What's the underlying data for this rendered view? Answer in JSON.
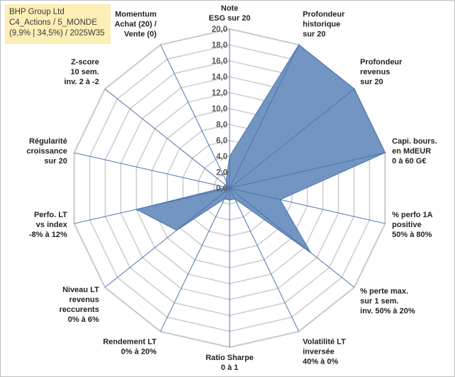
{
  "title_box": {
    "lines": [
      "BHP Group Ltd",
      "C4_Actions / 5_MONDE",
      "(9,9% | 34,5%) / 2025W35"
    ]
  },
  "chart_data": {
    "type": "radar",
    "rmin": 0,
    "rmax": 20,
    "tick_step": 2,
    "tick_labels": [
      "0,0",
      "2,0",
      "4,0",
      "6,0",
      "8,0",
      "10,0",
      "12,0",
      "14,0",
      "16,0",
      "18,0",
      "20,0"
    ],
    "grid": true,
    "legend": "none",
    "fill_color": "#6b8fbe",
    "line_color": "#4a73b0",
    "grid_color": "#c8c8c8",
    "axes": [
      {
        "label": [
          "Note",
          "ESG sur 20"
        ],
        "value": 4
      },
      {
        "label": [
          "Profondeur",
          "historique",
          "sur 20"
        ],
        "value": 20
      },
      {
        "label": [
          "Profondeur",
          "revenus",
          "sur 20"
        ],
        "value": 20
      },
      {
        "label": [
          "Capi. bours.",
          "en MdEUR",
          "0 à 60 G€"
        ],
        "value": 20
      },
      {
        "label": [
          "% perfo 1A",
          "positive",
          "50% à 80%"
        ],
        "value": 6.5
      },
      {
        "label": [
          "% perte max.",
          "sur 1 sem.",
          "inv. 50% à 20%"
        ],
        "value": 13
      },
      {
        "label": [
          "Volatilité LT",
          "inversée",
          "40% à 0%"
        ],
        "value": 1.5
      },
      {
        "label": [
          "Ratio Sharpe",
          "0 à 1"
        ],
        "value": 1.5
      },
      {
        "label": [
          "Rendement LT",
          "0% à 20%"
        ],
        "value": 1.5
      },
      {
        "label": [
          "Niveau LT",
          "revenus",
          "reccurents",
          "0% à 6%"
        ],
        "value": 8.5
      },
      {
        "label": [
          "Perfo. LT",
          "vs index",
          "-8% à 12%"
        ],
        "value": 12
      },
      {
        "label": [
          "Régularité",
          "croissance",
          "sur 20"
        ],
        "value": 0.5
      },
      {
        "label": [
          "Z-score",
          "10 sem.",
          "inv. 2 à -2"
        ],
        "value": 0.5
      },
      {
        "label": [
          "Momentum",
          "Achat (20) /",
          "Vente (0)"
        ],
        "value": 1
      }
    ]
  }
}
